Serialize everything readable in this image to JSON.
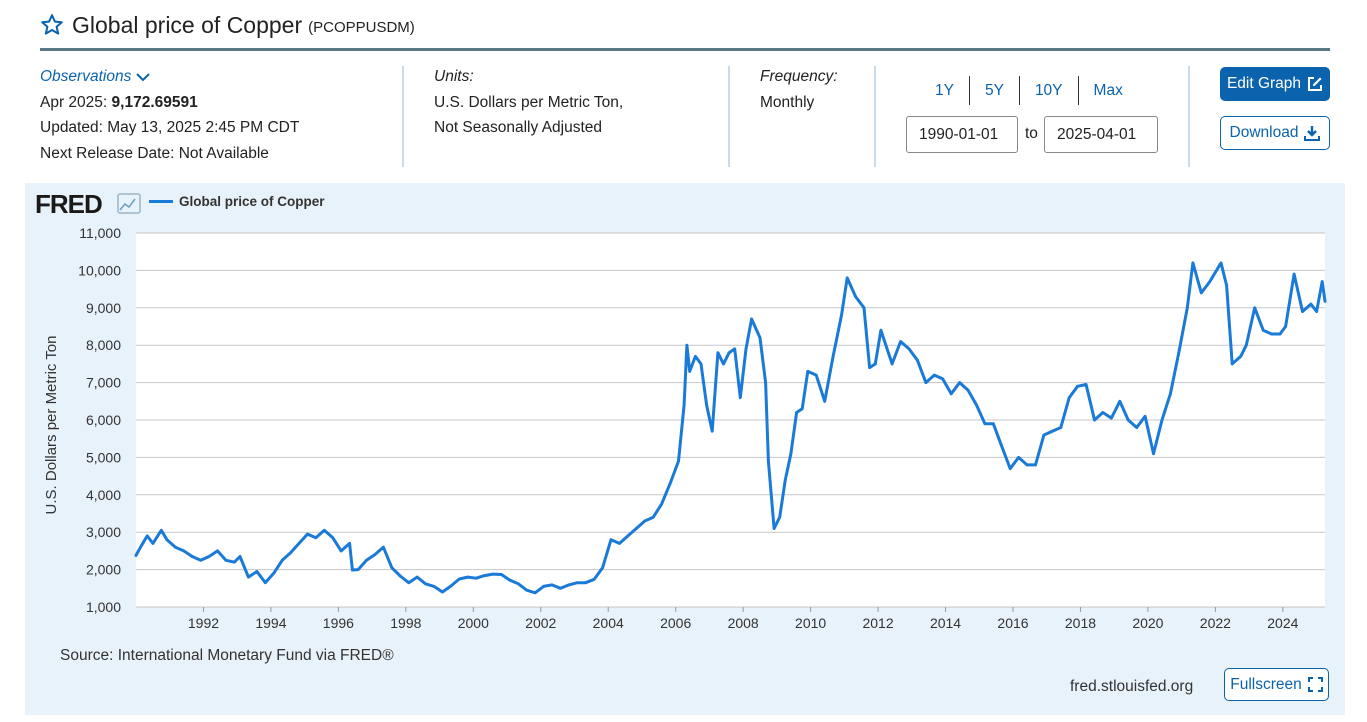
{
  "header": {
    "title": "Global price of Copper",
    "series_id": "(PCOPPUSDM)",
    "favorite_icon": "star-icon"
  },
  "observations": {
    "label": "Observations",
    "latest_date": "Apr 2025:",
    "latest_value": "9,172.69591",
    "updated": "Updated: May 13, 2025 2:45 PM CDT",
    "next_release": "Next Release Date: Not Available"
  },
  "units": {
    "label": "Units:",
    "line1": "U.S. Dollars per Metric Ton,",
    "line2": "Not Seasonally Adjusted"
  },
  "frequency": {
    "label": "Frequency:",
    "value": "Monthly"
  },
  "range_buttons": [
    "1Y",
    "5Y",
    "10Y",
    "Max"
  ],
  "date_range": {
    "start": "1990-01-01",
    "to_label": "to",
    "end": "2025-04-01"
  },
  "buttons": {
    "edit_graph": "Edit Graph",
    "download": "Download",
    "fullscreen": "Fullscreen"
  },
  "footer": {
    "source": "Source: International Monetary Fund via FRED®",
    "url": "fred.stlouisfed.org"
  },
  "branding": {
    "logo_text": "FRED"
  },
  "colors": {
    "line": "#1a7ad8",
    "accent": "#0b63ad",
    "panel_bg": "#e8f2fa",
    "title_rule": "#5b7685"
  },
  "chart_data": {
    "type": "line",
    "ylabel": "U.S. Dollars per Metric Ton",
    "xlabel": "",
    "ylim": [
      1000,
      11000
    ],
    "y_ticks": [
      1000,
      2000,
      3000,
      4000,
      5000,
      6000,
      7000,
      8000,
      9000,
      10000,
      11000
    ],
    "y_tick_labels": [
      "1,000",
      "2,000",
      "3,000",
      "4,000",
      "5,000",
      "6,000",
      "7,000",
      "8,000",
      "9,000",
      "10,000",
      "11,000"
    ],
    "x_tick_labels": [
      "1992",
      "1994",
      "1996",
      "1998",
      "2000",
      "2002",
      "2004",
      "2006",
      "2008",
      "2010",
      "2012",
      "2014",
      "2016",
      "2018",
      "2020",
      "2022",
      "2024"
    ],
    "xlim": [
      "1990-01",
      "2025-04"
    ],
    "grid": true,
    "legend_position": "top-left",
    "series": [
      {
        "name": "Global price of Copper",
        "x": [
          "1990-01",
          "1990-03",
          "1990-05",
          "1990-07",
          "1990-10",
          "1990-12",
          "1991-03",
          "1991-06",
          "1991-09",
          "1991-12",
          "1992-03",
          "1992-06",
          "1992-09",
          "1992-12",
          "1993-02",
          "1993-05",
          "1993-08",
          "1993-11",
          "1994-02",
          "1994-05",
          "1994-08",
          "1994-11",
          "1995-02",
          "1995-05",
          "1995-08",
          "1995-11",
          "1996-02",
          "1996-05",
          "1996-06",
          "1996-08",
          "1996-11",
          "1997-02",
          "1997-05",
          "1997-08",
          "1997-11",
          "1998-02",
          "1998-05",
          "1998-08",
          "1998-11",
          "1999-02",
          "1999-05",
          "1999-08",
          "1999-11",
          "2000-02",
          "2000-05",
          "2000-08",
          "2000-11",
          "2001-02",
          "2001-05",
          "2001-08",
          "2001-11",
          "2002-02",
          "2002-05",
          "2002-08",
          "2002-11",
          "2003-02",
          "2003-05",
          "2003-08",
          "2003-11",
          "2004-02",
          "2004-05",
          "2004-08",
          "2004-11",
          "2005-02",
          "2005-05",
          "2005-08",
          "2005-11",
          "2006-02",
          "2006-04",
          "2006-05",
          "2006-06",
          "2006-08",
          "2006-10",
          "2006-12",
          "2007-02",
          "2007-04",
          "2007-06",
          "2007-08",
          "2007-10",
          "2007-12",
          "2008-02",
          "2008-04",
          "2008-07",
          "2008-09",
          "2008-10",
          "2008-12",
          "2009-02",
          "2009-04",
          "2009-06",
          "2009-08",
          "2009-10",
          "2009-12",
          "2010-03",
          "2010-06",
          "2010-09",
          "2010-12",
          "2011-02",
          "2011-05",
          "2011-08",
          "2011-10",
          "2011-12",
          "2012-02",
          "2012-06",
          "2012-09",
          "2012-12",
          "2013-03",
          "2013-06",
          "2013-09",
          "2013-12",
          "2014-03",
          "2014-06",
          "2014-09",
          "2014-12",
          "2015-03",
          "2015-06",
          "2015-09",
          "2015-12",
          "2016-03",
          "2016-06",
          "2016-09",
          "2016-12",
          "2017-03",
          "2017-06",
          "2017-09",
          "2017-12",
          "2018-03",
          "2018-06",
          "2018-09",
          "2018-12",
          "2019-03",
          "2019-06",
          "2019-09",
          "2019-12",
          "2020-03",
          "2020-06",
          "2020-09",
          "2020-12",
          "2021-03",
          "2021-05",
          "2021-08",
          "2021-11",
          "2022-03",
          "2022-05",
          "2022-07",
          "2022-10",
          "2022-12",
          "2023-03",
          "2023-06",
          "2023-09",
          "2023-12",
          "2024-02",
          "2024-05",
          "2024-08",
          "2024-11",
          "2025-01",
          "2025-03",
          "2025-04"
        ],
        "values": [
          2380,
          2650,
          2900,
          2700,
          3050,
          2800,
          2600,
          2500,
          2350,
          2250,
          2350,
          2500,
          2250,
          2200,
          2350,
          1800,
          1950,
          1650,
          1900,
          2250,
          2450,
          2700,
          2950,
          2850,
          3050,
          2850,
          2500,
          2700,
          1990,
          2000,
          2250,
          2400,
          2600,
          2050,
          1830,
          1650,
          1800,
          1620,
          1550,
          1400,
          1560,
          1750,
          1800,
          1770,
          1840,
          1880,
          1870,
          1720,
          1620,
          1450,
          1380,
          1550,
          1590,
          1500,
          1590,
          1650,
          1650,
          1740,
          2050,
          2800,
          2700,
          2900,
          3100,
          3300,
          3400,
          3750,
          4300,
          4900,
          6400,
          8000,
          7300,
          7700,
          7500,
          6400,
          5700,
          7800,
          7500,
          7800,
          7900,
          6600,
          7900,
          8700,
          8200,
          7000,
          4900,
          3100,
          3400,
          4400,
          5100,
          6200,
          6300,
          7300,
          7200,
          6500,
          7700,
          8800,
          9800,
          9300,
          9000,
          7400,
          7500,
          8400,
          7500,
          8100,
          7900,
          7600,
          7000,
          7200,
          7100,
          6700,
          7000,
          6800,
          6400,
          5900,
          5900,
          5300,
          4700,
          5000,
          4800,
          4800,
          5600,
          5700,
          5800,
          6600,
          6900,
          6950,
          6000,
          6200,
          6050,
          6500,
          6000,
          5800,
          6100,
          5100,
          6000,
          6700,
          7800,
          9000,
          10200,
          9400,
          9700,
          10200,
          9600,
          7500,
          7700,
          8000,
          9000,
          8400,
          8300,
          8300,
          8500,
          9900,
          8900,
          9100,
          8900,
          9700,
          9172.7
        ]
      }
    ]
  }
}
